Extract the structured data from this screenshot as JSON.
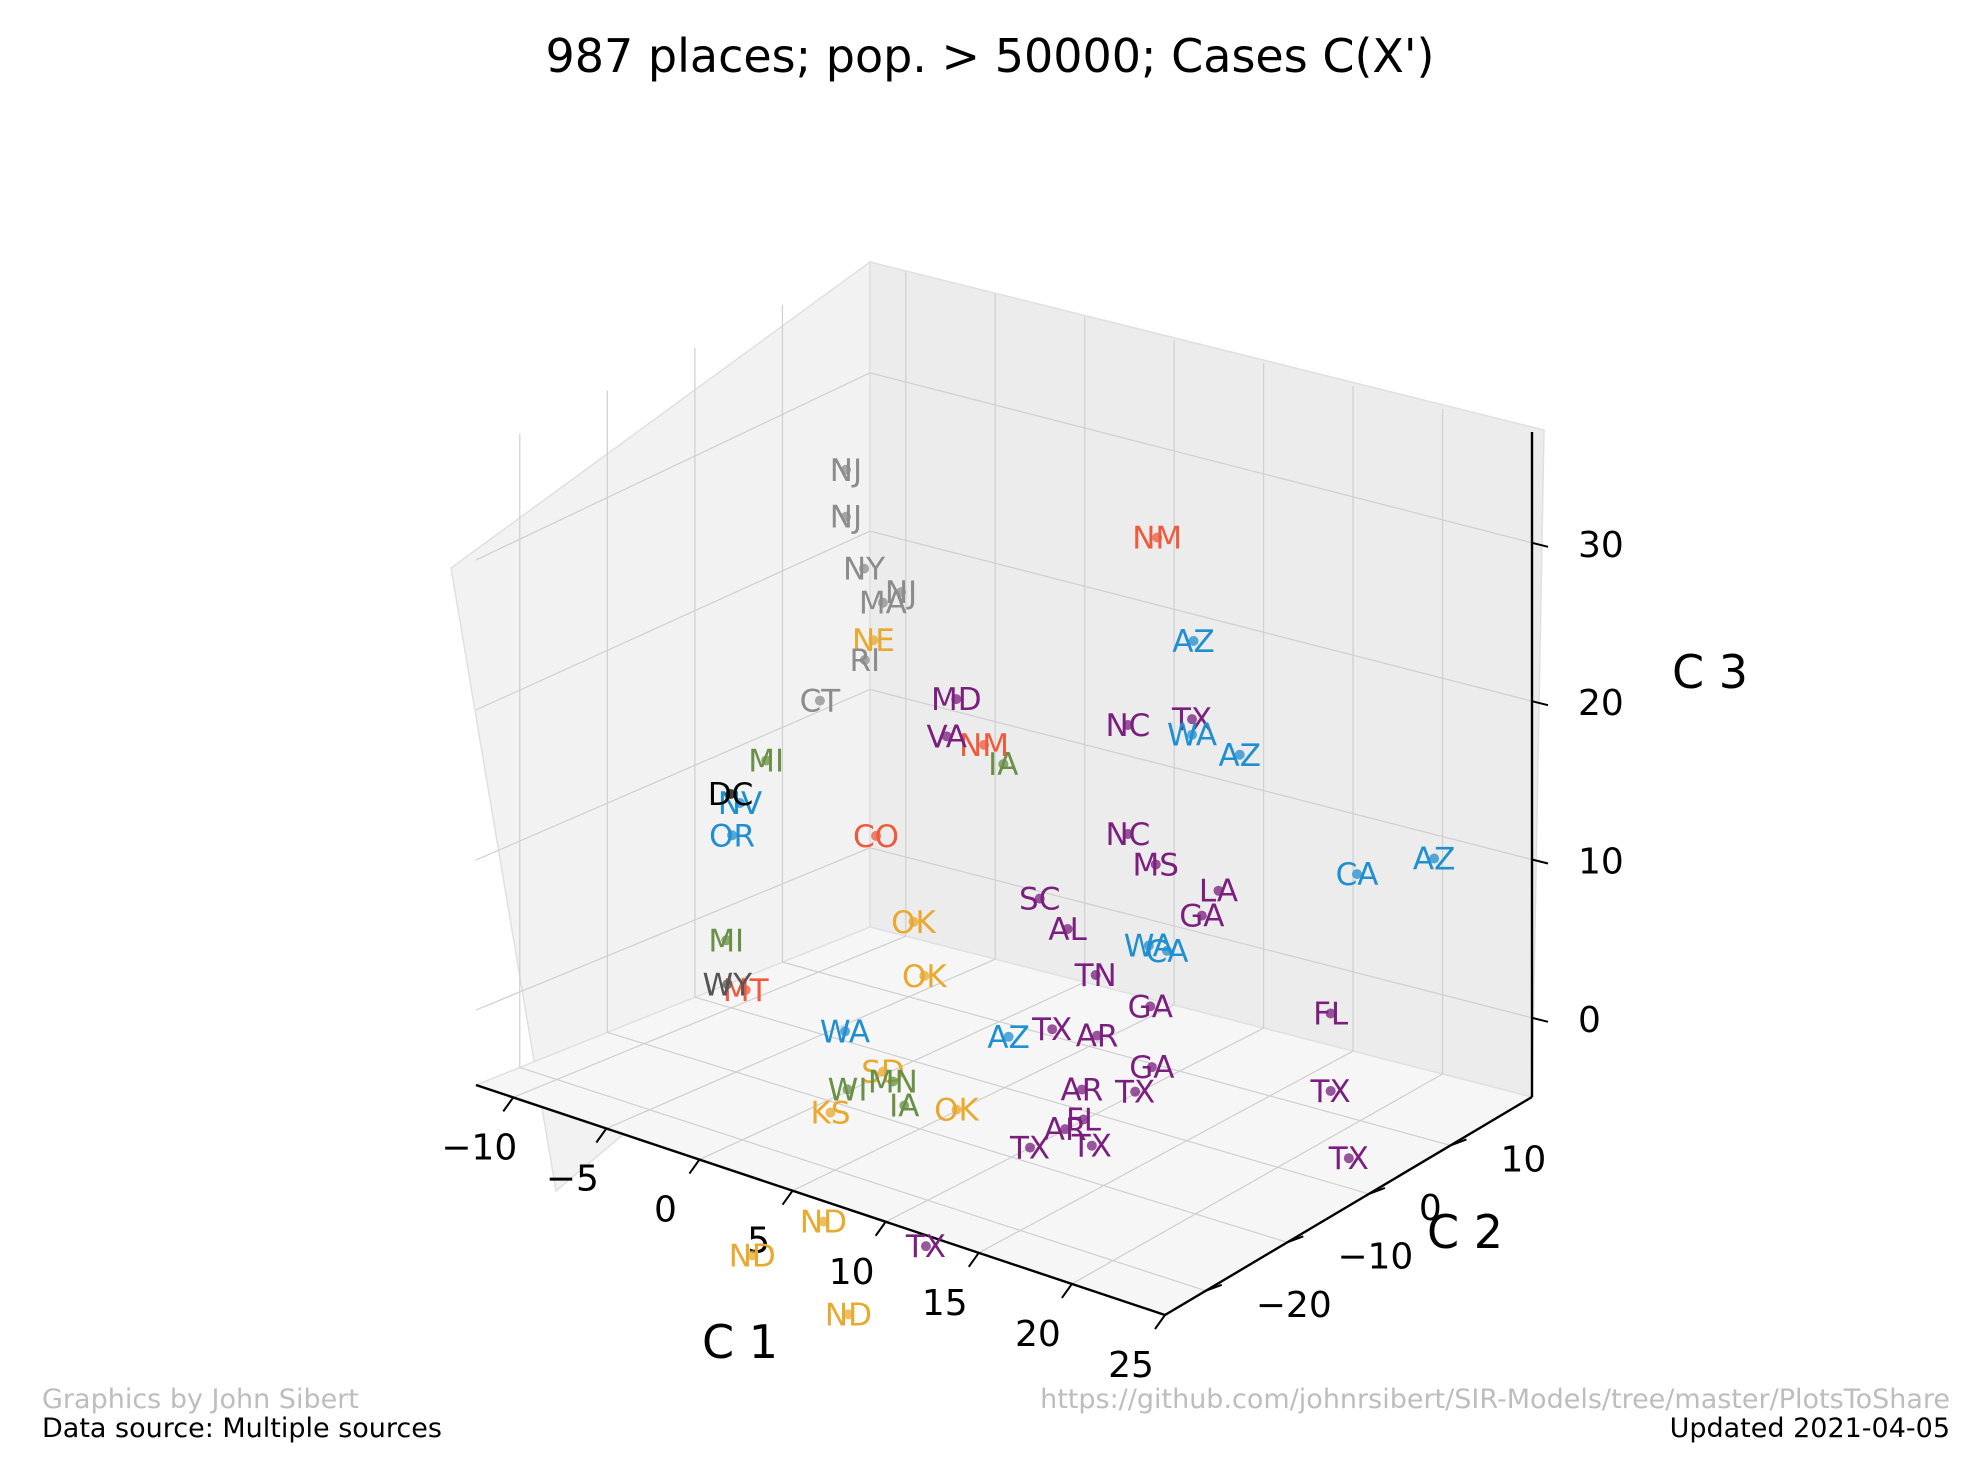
{
  "chart_data": {
    "type": "scatter",
    "title": "987 places; pop. > 50000; Cases C(X')",
    "xlabel": "C 1",
    "ylabel": "C 2",
    "zlabel": "C 3",
    "x_ticks": [
      "−10",
      "−5",
      "0",
      "5",
      "10",
      "15",
      "20",
      "25"
    ],
    "y_ticks": [
      "−20",
      "−10",
      "0",
      "10"
    ],
    "z_ticks": [
      "0",
      "10",
      "20",
      "30"
    ],
    "xlim": [
      -12,
      25
    ],
    "ylim": [
      -25,
      20
    ],
    "zlim": [
      -5,
      37
    ],
    "grid": true,
    "state_colors": {
      "NJ": "#8c8c8c",
      "NY": "#8c8c8c",
      "CT": "#8c8c8c",
      "MA": "#8c8c8c",
      "RI": "#8c8c8c",
      "NE": "#e8a92e",
      "ND": "#e8a92e",
      "SD": "#e8a92e",
      "KS": "#e8a92e",
      "OK": "#e8a92e",
      "MO": "#e8a92e",
      "NM": "#f05a3c",
      "MT": "#f05a3c",
      "CO": "#f05a3c",
      "AZ": "#1f8fd0",
      "CA": "#1f8fd0",
      "WA": "#1f8fd0",
      "OR": "#1f8fd0",
      "NV": "#1f8fd0",
      "TX": "#7a1f7e",
      "FL": "#7a1f7e",
      "GA": "#7a1f7e",
      "NC": "#7a1f7e",
      "MS": "#7a1f7e",
      "AL": "#7a1f7e",
      "AR": "#7a1f7e",
      "LA": "#7a1f7e",
      "SC": "#7a1f7e",
      "VA": "#7a1f7e",
      "MD": "#7a1f7e",
      "TN": "#7a1f7e",
      "IA": "#6a8f47",
      "MN": "#6a8f47",
      "WI": "#6a8f47",
      "MI": "#6a8f47",
      "IL": "#6a8f47",
      "IN": "#6a8f47",
      "OH": "#6a8f47",
      "ME": "#6a8f47",
      "NH": "#6a8f47",
      "VT": "#6a8f47",
      "DC": "#000000"
    },
    "points": [
      {
        "label": "NM",
        "x": 12,
        "y": 3,
        "z": 32
      },
      {
        "label": "AZ",
        "x": 14,
        "y": 3,
        "z": 26
      },
      {
        "label": "AZ",
        "x": 17,
        "y": 2,
        "z": 20
      },
      {
        "label": "TX",
        "x": 13,
        "y": 5,
        "z": 20
      },
      {
        "label": "WA",
        "x": 13,
        "y": 5,
        "z": 19
      },
      {
        "label": "NC",
        "x": 9,
        "y": 6,
        "z": 18
      },
      {
        "label": "CA",
        "x": 23,
        "y": 3,
        "z": 14
      },
      {
        "label": "AZ",
        "x": 25,
        "y": 8,
        "z": 14
      },
      {
        "label": "FL",
        "x": 22,
        "y": 2,
        "z": 5
      },
      {
        "label": "TX",
        "x": 22,
        "y": 2,
        "z": 0
      },
      {
        "label": "TX",
        "x": 23,
        "y": 2,
        "z": -4
      },
      {
        "label": "TX",
        "x": 14,
        "y": -4,
        "z": -1
      },
      {
        "label": "FL",
        "x": 13,
        "y": -8,
        "z": -2
      },
      {
        "label": "TX",
        "x": 13,
        "y": -7,
        "z": -4
      },
      {
        "label": "GA",
        "x": 14,
        "y": -2,
        "z": 0
      },
      {
        "label": "GA",
        "x": 14,
        "y": 4,
        "z": 8
      },
      {
        "label": "LA",
        "x": 14,
        "y": 6,
        "z": 9
      },
      {
        "label": "MS",
        "x": 11,
        "y": 5,
        "z": 10
      },
      {
        "label": "NC",
        "x": 9,
        "y": 6,
        "z": 11
      },
      {
        "label": "TX",
        "x": 9,
        "y": -18,
        "z": -9
      },
      {
        "label": "ND",
        "x": 8,
        "y": -25,
        "z": -12
      },
      {
        "label": "ND",
        "x": 3,
        "y": -17,
        "z": -10
      },
      {
        "label": "ND",
        "x": 1,
        "y": -21,
        "z": -12
      },
      {
        "label": "IA",
        "x": 6,
        "y": -14,
        "z": -2
      },
      {
        "label": "KS",
        "x": 2,
        "y": -14,
        "z": -4
      },
      {
        "label": "SD",
        "x": 3,
        "y": -10,
        "z": -2
      },
      {
        "label": "MT",
        "x": -4,
        "y": -11,
        "z": 1
      },
      {
        "label": "WY",
        "x": -5,
        "y": -11,
        "z": 1
      },
      {
        "label": "IA",
        "x": 4,
        "y": 2,
        "z": 15
      },
      {
        "label": "NM",
        "x": 2,
        "y": 4,
        "z": 15
      },
      {
        "label": "MD",
        "x": 0,
        "y": 5,
        "z": 17
      },
      {
        "label": "NE",
        "x": -6,
        "y": 8,
        "z": 18
      },
      {
        "label": "NJ",
        "x": -8,
        "y": 9,
        "z": 28
      },
      {
        "label": "NJ",
        "x": -8,
        "y": 9,
        "z": 25
      },
      {
        "label": "NY",
        "x": -7,
        "y": 9,
        "z": 22
      },
      {
        "label": "NJ",
        "x": -4,
        "y": 7,
        "z": 22
      },
      {
        "label": "MA",
        "x": -5,
        "y": 7,
        "z": 21
      },
      {
        "label": "VA",
        "x": -1,
        "y": 6,
        "z": 14
      },
      {
        "label": "OK",
        "x": 0,
        "y": 0,
        "z": 4
      },
      {
        "label": "CO",
        "x": -3,
        "y": 2,
        "z": 8
      },
      {
        "label": "OK",
        "x": 2,
        "y": -3,
        "z": 2
      },
      {
        "label": "AZ",
        "x": 8,
        "y": -6,
        "z": 1
      },
      {
        "label": "AR",
        "x": 12,
        "y": -6,
        "z": -1
      },
      {
        "label": "AR",
        "x": 12,
        "y": -8,
        "z": -3
      },
      {
        "label": "TX",
        "x": 11,
        "y": -10,
        "z": -4
      },
      {
        "label": "OK",
        "x": 7,
        "y": -10,
        "z": -3
      },
      {
        "label": "WA",
        "x": 0,
        "y": -8,
        "z": -1
      },
      {
        "label": "MI",
        "x": -6,
        "y": -9,
        "z": 3
      },
      {
        "label": "OR",
        "x": -9,
        "y": -2,
        "z": 7
      },
      {
        "label": "NV",
        "x": -10,
        "y": 1,
        "z": 8
      },
      {
        "label": "DC",
        "x": -11,
        "y": 2,
        "z": 8
      },
      {
        "label": "MI",
        "x": -10,
        "y": 4,
        "z": 10
      },
      {
        "label": "CT",
        "x": -8,
        "y": 6,
        "z": 14
      },
      {
        "label": "RI",
        "x": -6,
        "y": 7,
        "z": 17
      },
      {
        "label": "WI",
        "x": 2,
        "y": -12,
        "z": -3
      },
      {
        "label": "MN",
        "x": 4,
        "y": -11,
        "z": -2
      },
      {
        "label": "SC",
        "x": 6,
        "y": 2,
        "z": 7
      },
      {
        "label": "AL",
        "x": 8,
        "y": 1,
        "z": 6
      },
      {
        "label": "TN",
        "x": 10,
        "y": 0,
        "z": 4
      },
      {
        "label": "GA",
        "x": 13,
        "y": 0,
        "z": 3
      },
      {
        "label": "CA",
        "x": 13,
        "y": 2,
        "z": 6
      },
      {
        "label": "WA",
        "x": 12,
        "y": 2,
        "z": 6
      },
      {
        "label": "AR",
        "x": 11,
        "y": -2,
        "z": 1
      },
      {
        "label": "TX",
        "x": 9,
        "y": -3,
        "z": 1
      }
    ]
  },
  "footer": {
    "credit": "Graphics by John Sibert",
    "source": "Data source: Multiple sources",
    "url": "https://github.com/johnrsibert/SIR-Models/tree/master/PlotsToShare",
    "updated": "Updated 2021-04-05"
  }
}
